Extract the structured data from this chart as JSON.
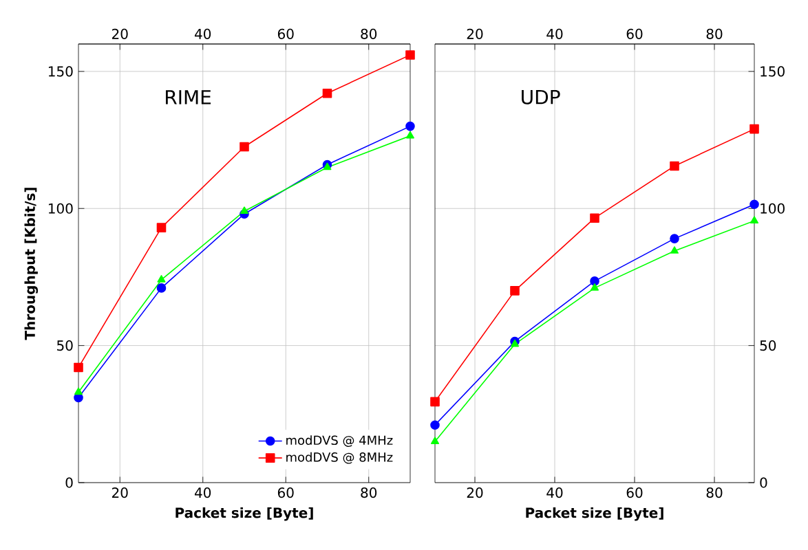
{
  "chart_data": [
    {
      "type": "line",
      "title": "RIME",
      "xlabel": "Packet size [Byte]",
      "ylabel": "Throughput [Kbit/s]",
      "x": [
        10,
        30,
        50,
        70,
        90
      ],
      "series": [
        {
          "name": "modDVS @ 4MHz",
          "color": "#0000ff",
          "marker": "circle",
          "values": [
            31,
            71,
            98,
            116,
            130
          ]
        },
        {
          "name": "modDVS @ 8MHz",
          "color": "#ff0000",
          "marker": "square",
          "values": [
            42,
            93,
            122.5,
            142,
            156
          ]
        },
        {
          "color": "#00ff00",
          "marker": "triangle",
          "values": [
            33,
            74,
            99,
            115,
            126.5
          ]
        }
      ],
      "xlim": [
        10,
        90
      ],
      "xticks": [
        20,
        40,
        60,
        80
      ],
      "x2lim": [
        10,
        90
      ],
      "x2ticks": [
        20,
        40,
        60,
        80
      ],
      "ylim": [
        0,
        160
      ],
      "yticks": [
        0,
        50,
        100,
        150
      ],
      "grid": true,
      "legend": "bottom right"
    },
    {
      "type": "line",
      "title": "UDP",
      "xlabel": "Packet size [Byte]",
      "x": [
        10,
        30,
        50,
        70,
        90
      ],
      "series": [
        {
          "color": "#0000ff",
          "marker": "circle",
          "axis": "y2",
          "values": [
            21,
            51.5,
            73.5,
            89,
            101.5
          ]
        },
        {
          "color": "#ff0000",
          "marker": "square",
          "axis": "y2",
          "values": [
            29.5,
            70,
            96.5,
            115.5,
            129
          ]
        },
        {
          "color": "#00ff00",
          "marker": "triangle",
          "axis": "y2",
          "values": [
            15,
            50.5,
            71,
            84.5,
            95.5
          ]
        }
      ],
      "xlim": [
        10,
        90
      ],
      "xticks": [
        20,
        40,
        60,
        80
      ],
      "x2lim": [
        10,
        90
      ],
      "x2ticks": [
        20,
        40,
        60,
        80
      ],
      "y2lim": [
        0,
        160
      ],
      "y2ticks": [
        0,
        50,
        100,
        150
      ],
      "grid": true,
      "legend": false
    }
  ]
}
